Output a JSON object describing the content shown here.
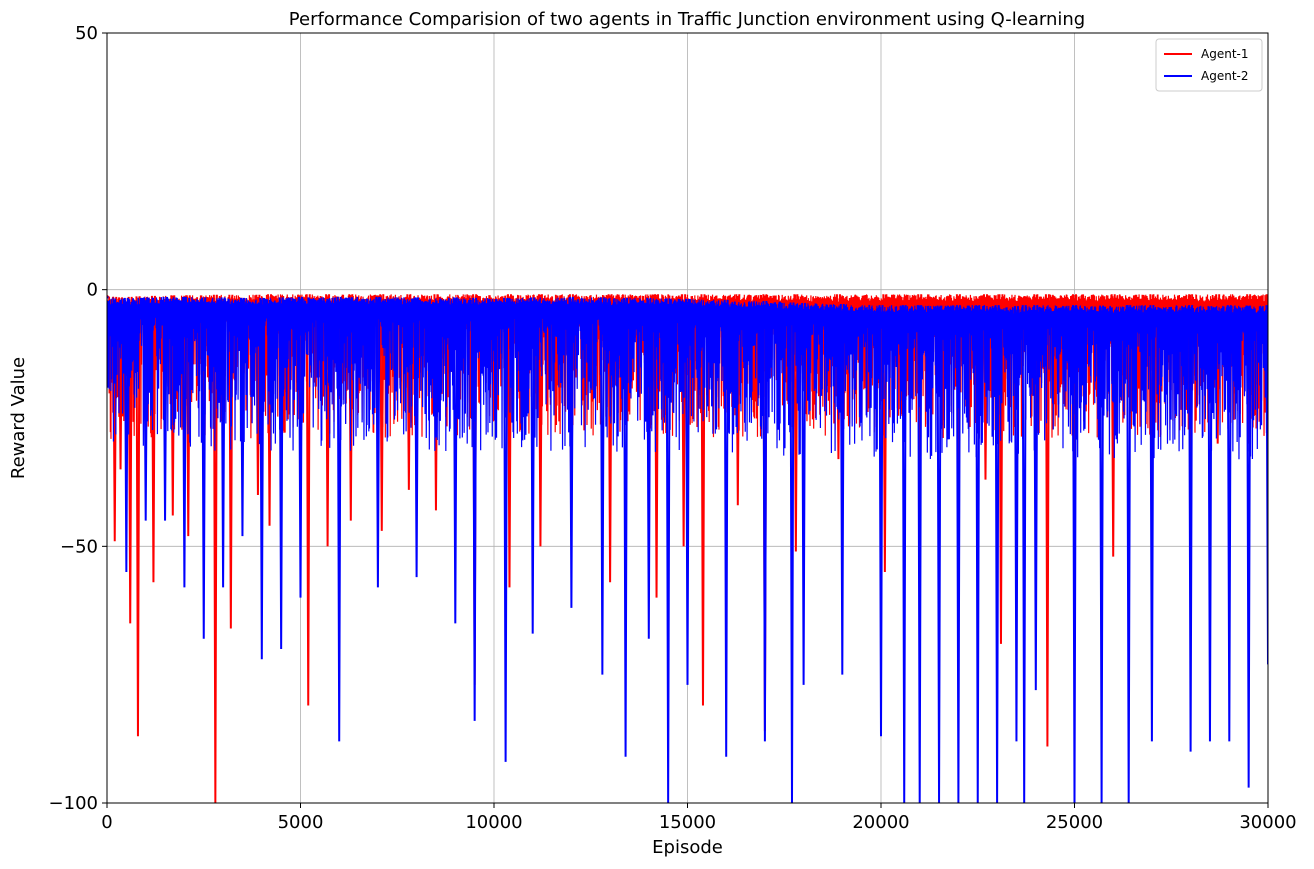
{
  "chart_data": {
    "type": "line",
    "title": "Performance Comparision of two agents in Traffic Junction environment using Q-learning",
    "xlabel": "Episode",
    "ylabel": "Reward Value",
    "xlim": [
      0,
      30000
    ],
    "ylim": [
      -100,
      50
    ],
    "xticks": [
      0,
      5000,
      10000,
      15000,
      20000,
      25000,
      30000
    ],
    "xtick_labels": [
      "0",
      "5000",
      "10000",
      "15000",
      "20000",
      "25000",
      "30000"
    ],
    "yticks": [
      -100,
      -50,
      0,
      50
    ],
    "ytick_labels": [
      "−100",
      "−50",
      "0",
      "50"
    ],
    "grid": true,
    "legend": "top-right",
    "series": [
      {
        "name": "Agent-1",
        "color": "#ff0000",
        "x": [
          0,
          200,
          350,
          600,
          800,
          1200,
          1700,
          2100,
          2800,
          3200,
          3900,
          4200,
          5200,
          5700,
          6300,
          7100,
          7800,
          8500,
          9500,
          10400,
          11200,
          12000,
          13000,
          14200,
          14900,
          15400,
          16300,
          17000,
          17800,
          18900,
          20100,
          21000,
          22000,
          22700,
          23100,
          24000,
          24300,
          25000,
          26000,
          27000,
          28000,
          28700,
          29500,
          30000
        ],
        "y": [
          -1.5,
          -49,
          -35,
          -65,
          -87,
          -57,
          -44,
          -48,
          -100,
          -66,
          -40,
          -46,
          -81,
          -50,
          -45,
          -47,
          -39,
          -43,
          -77,
          -58,
          -50,
          -48,
          -57,
          -60,
          -50,
          -81,
          -42,
          -86,
          -51,
          -33,
          -55,
          -50,
          -49,
          -37,
          -69,
          -52,
          -89,
          -52,
          -52,
          -52,
          -45,
          -30,
          -30,
          -30
        ],
        "upper": [
          -1.2,
          -1.4,
          -1.5,
          -1.4,
          -1.3,
          -1.2,
          -1.1,
          -1.1,
          -1.0,
          -1.0,
          -1.0,
          -0.9,
          -0.9,
          -0.9,
          -0.9,
          -0.9,
          -0.9,
          -0.9,
          -0.9,
          -0.9,
          -0.9,
          -0.9,
          -0.9,
          -0.9,
          -0.9,
          -0.9,
          -0.9,
          -0.9,
          -0.9,
          -0.9,
          -0.9,
          -0.9,
          -0.9,
          -0.9,
          -0.9,
          -0.9,
          -0.9,
          -0.9,
          -0.9,
          -0.9,
          -0.9,
          -0.9,
          -0.9,
          -0.9
        ]
      },
      {
        "name": "Agent-2",
        "color": "#0000ff",
        "x": [
          0,
          500,
          1000,
          1500,
          2000,
          2500,
          3000,
          3500,
          4000,
          4500,
          5000,
          6000,
          7000,
          8000,
          9000,
          9500,
          10300,
          11000,
          12000,
          12800,
          13400,
          14000,
          14500,
          15000,
          16000,
          17000,
          17700,
          18000,
          19000,
          20000,
          20600,
          21000,
          21500,
          22000,
          22500,
          23000,
          23500,
          23700,
          24000,
          25000,
          25700,
          26400,
          27000,
          28000,
          28500,
          29000,
          29500,
          30000
        ],
        "y": [
          -1.5,
          -55,
          -45,
          -45,
          -58,
          -68,
          -58,
          -48,
          -72,
          -70,
          -60,
          -88,
          -58,
          -56,
          -65,
          -84,
          -92,
          -67,
          -62,
          -75,
          -91,
          -68,
          -100,
          -77,
          -91,
          -88,
          -100,
          -77,
          -75,
          -87,
          -100,
          -100,
          -100,
          -100,
          -100,
          -100,
          -88,
          -100,
          -78,
          -100,
          -100,
          -100,
          -88,
          -90,
          -88,
          -88,
          -97,
          -73
        ],
        "upper": [
          -1.5,
          -1.6,
          -1.5,
          -1.4,
          -1.4,
          -1.5,
          -1.5,
          -1.6,
          -1.6,
          -1.5,
          -1.4,
          -1.4,
          -1.4,
          -1.5,
          -1.5,
          -1.6,
          -1.6,
          -1.5,
          -1.4,
          -1.5,
          -1.6,
          -1.6,
          -1.7,
          -1.8,
          -2.0,
          -2.2,
          -2.5,
          -2.6,
          -2.8,
          -3.0,
          -3.0,
          -3.0,
          -3.1,
          -3.0,
          -3.0,
          -3.0,
          -3.2,
          -3.0,
          -3.0,
          -3.0,
          -3.1,
          -3.0,
          -3.0,
          -3.0,
          -3.2,
          -3.0,
          -3.1,
          -3.0
        ]
      }
    ]
  }
}
